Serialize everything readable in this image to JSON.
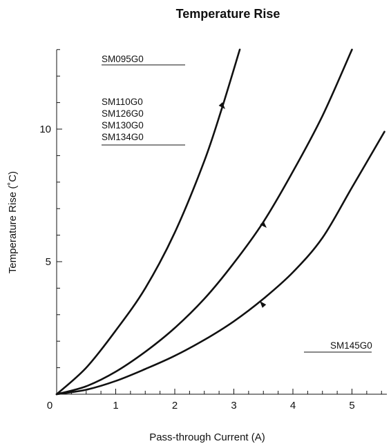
{
  "chart_data": {
    "type": "line",
    "title": "Temperature Rise",
    "xlabel": "Pass-through Current (A)",
    "ylabel": "Temperature Rise (˚C)",
    "xlim": [
      0,
      5.7
    ],
    "ylim": [
      0,
      13
    ],
    "x_ticks": [
      "0",
      "1",
      "2",
      "3",
      "4",
      "5"
    ],
    "y_ticks": [
      "5",
      "10"
    ],
    "grid": false,
    "series": [
      {
        "name": "SM095G0",
        "labels": [
          "SM095G0"
        ],
        "x": [
          0,
          0.5,
          1.0,
          1.5,
          2.0,
          2.5,
          2.8,
          3.1
        ],
        "y": [
          0,
          1.0,
          2.4,
          4.0,
          6.1,
          8.8,
          10.8,
          13.0
        ]
      },
      {
        "name": "SM110G0 / SM126G0 / SM130G0 / SM134G0",
        "labels": [
          "SM110G0",
          "SM126G0",
          "SM130G0",
          "SM134G0"
        ],
        "x": [
          0,
          0.5,
          1.0,
          1.5,
          2.0,
          2.5,
          3.0,
          3.5,
          4.0,
          4.5,
          5.0
        ],
        "y": [
          0,
          0.3,
          0.85,
          1.6,
          2.5,
          3.6,
          4.95,
          6.5,
          8.4,
          10.5,
          13.0
        ]
      },
      {
        "name": "SM145G0",
        "labels": [
          "SM145G0"
        ],
        "x": [
          0,
          0.5,
          1.0,
          1.5,
          2.0,
          2.5,
          3.0,
          3.5,
          4.0,
          4.5,
          5.0,
          5.55
        ],
        "y": [
          0,
          0.17,
          0.5,
          0.95,
          1.45,
          2.05,
          2.75,
          3.6,
          4.6,
          5.9,
          7.8,
          9.9
        ]
      }
    ]
  }
}
